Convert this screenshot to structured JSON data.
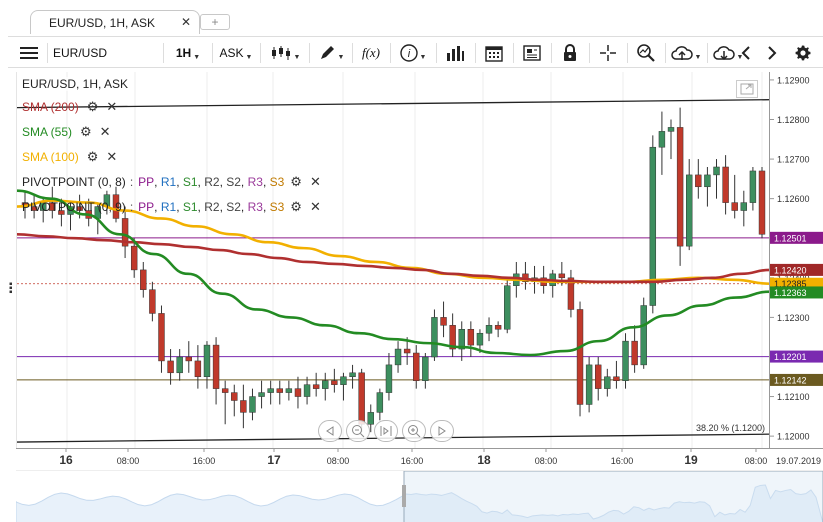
{
  "tab": {
    "title": "EUR/USD, 1H, ASK",
    "close": "✕",
    "add": "+"
  },
  "toolbar": {
    "symbol": "EUR/USD",
    "period": "1H",
    "side": "ASK",
    "icons": [
      "menu-icon",
      "candlestick-icon",
      "draw-icon",
      "function-icon",
      "info-icon",
      "volume-bars-icon",
      "calendar-icon",
      "news-icon",
      "lock-icon",
      "crosshair-icon",
      "zoom-icon",
      "cloud-upload-icon",
      "cloud-download-icon",
      "chevron-left-icon",
      "chevron-right-icon",
      "gear-icon"
    ],
    "fx_label": "f(x)"
  },
  "legend": {
    "title": "EUR/USD, 1H, ASK",
    "sma200": {
      "label": "SMA (200)",
      "color": "#b03030"
    },
    "sma55": {
      "label": "SMA (55)",
      "color": "#238b23"
    },
    "sma100": {
      "label": "SMA (100)",
      "color": "#f2b000"
    },
    "pivot1": {
      "label": "PIVOTPOINT (0, 8)",
      "pp": "PP",
      "r1": "R1",
      "s1": "S1",
      "r2": "R2",
      "s2": "S2",
      "r3": "R3",
      "s3": "S3",
      "sep": ":"
    },
    "pivot2": {
      "label": "PIVOTPOINT (0, 9)",
      "pp": "PP",
      "r1": "R1",
      "s1": "S1",
      "r2": "R2",
      "s2": "S2",
      "r3": "R3",
      "s3": "S3",
      "sep": ":"
    },
    "colors": {
      "pp": "#8b1a8b",
      "r1": "#1f6fbf",
      "s1": "#2e8b2e",
      "r2": "#444444",
      "s2": "#444444",
      "r3": "#9b3b9b",
      "s3": "#c07a00"
    }
  },
  "price_axis": {
    "ticks": [
      "1.12900",
      "1.12800",
      "1.12700",
      "1.12600",
      "1.12500",
      "1.12400",
      "1.12300",
      "1.12200",
      "1.12100",
      "1.12000"
    ],
    "badges": [
      {
        "value": "1.12501",
        "bg": "#8b1a8b",
        "fg": "#ffffff"
      },
      {
        "value": "1.12420",
        "bg": "#a02828",
        "fg": "#ffffff"
      },
      {
        "value": "1.12385",
        "bg": "#f2b000",
        "fg": "#222222"
      },
      {
        "value": "1.12363",
        "bg": "#238b23",
        "fg": "#ffffff"
      },
      {
        "value": "1.12201",
        "bg": "#7a2ab0",
        "fg": "#ffffff"
      },
      {
        "value": "1.12142",
        "bg": "#6b5a20",
        "fg": "#ffffff"
      }
    ]
  },
  "time_axis": {
    "labels": [
      {
        "t": "16",
        "bold": true
      },
      {
        "t": "08:00",
        "bold": false
      },
      {
        "t": "16:00",
        "bold": false
      },
      {
        "t": "17",
        "bold": true
      },
      {
        "t": "08:00",
        "bold": false
      },
      {
        "t": "16:00",
        "bold": false
      },
      {
        "t": "18",
        "bold": true
      },
      {
        "t": "08:00",
        "bold": false
      },
      {
        "t": "16:00",
        "bold": false
      },
      {
        "t": "19",
        "bold": true
      },
      {
        "t": "08:00",
        "bold": false
      }
    ],
    "end_label": "19.07.2019"
  },
  "fib_label": "38.20 % (1.1200)",
  "chart_data": {
    "type": "candlestick",
    "title": "EUR/USD, 1H, ASK",
    "ylim": [
      1.1197,
      1.1292
    ],
    "candles": [
      [
        1.1259,
        1.1262,
        1.1255,
        1.1258
      ],
      [
        1.1258,
        1.1261,
        1.1255,
        1.1257
      ],
      [
        1.1257,
        1.126,
        1.1254,
        1.1259
      ],
      [
        1.1259,
        1.1263,
        1.1255,
        1.1257
      ],
      [
        1.1257,
        1.126,
        1.1253,
        1.1256
      ],
      [
        1.1256,
        1.1259,
        1.1252,
        1.1258
      ],
      [
        1.1258,
        1.1261,
        1.1255,
        1.1257
      ],
      [
        1.1257,
        1.126,
        1.1253,
        1.1255
      ],
      [
        1.1255,
        1.1259,
        1.1251,
        1.1258
      ],
      [
        1.1258,
        1.1262,
        1.1256,
        1.1261
      ],
      [
        1.1261,
        1.1263,
        1.1254,
        1.1255
      ],
      [
        1.1255,
        1.1258,
        1.1245,
        1.1248
      ],
      [
        1.1248,
        1.125,
        1.124,
        1.1242
      ],
      [
        1.1242,
        1.1244,
        1.1235,
        1.1237
      ],
      [
        1.1237,
        1.1239,
        1.1229,
        1.1231
      ],
      [
        1.1231,
        1.1233,
        1.1216,
        1.1219
      ],
      [
        1.1219,
        1.1222,
        1.1213,
        1.1216
      ],
      [
        1.1216,
        1.1222,
        1.1214,
        1.122
      ],
      [
        1.122,
        1.1224,
        1.1216,
        1.1219
      ],
      [
        1.1219,
        1.1223,
        1.1212,
        1.1215
      ],
      [
        1.1215,
        1.1224,
        1.1212,
        1.1223
      ],
      [
        1.1223,
        1.1225,
        1.1208,
        1.1212
      ],
      [
        1.1212,
        1.1214,
        1.1203,
        1.1211
      ],
      [
        1.1211,
        1.1213,
        1.1205,
        1.1209
      ],
      [
        1.1209,
        1.1213,
        1.1202,
        1.1206
      ],
      [
        1.1206,
        1.1212,
        1.1204,
        1.121
      ],
      [
        1.121,
        1.1214,
        1.1207,
        1.1211
      ],
      [
        1.1211,
        1.1214,
        1.1208,
        1.1212
      ],
      [
        1.1212,
        1.1214,
        1.1208,
        1.1211
      ],
      [
        1.1211,
        1.1214,
        1.1209,
        1.1212
      ],
      [
        1.1212,
        1.1215,
        1.1207,
        1.121
      ],
      [
        1.121,
        1.1215,
        1.1208,
        1.1213
      ],
      [
        1.1213,
        1.1216,
        1.121,
        1.1212
      ],
      [
        1.1212,
        1.1216,
        1.1209,
        1.1214
      ],
      [
        1.1214,
        1.1217,
        1.1211,
        1.1213
      ],
      [
        1.1213,
        1.1216,
        1.1209,
        1.1215
      ],
      [
        1.1215,
        1.1218,
        1.1212,
        1.1216
      ],
      [
        1.1216,
        1.1217,
        1.1201,
        1.1203
      ],
      [
        1.1203,
        1.1208,
        1.1201,
        1.1206
      ],
      [
        1.1206,
        1.1212,
        1.1204,
        1.1211
      ],
      [
        1.1211,
        1.1221,
        1.1209,
        1.1218
      ],
      [
        1.1218,
        1.1224,
        1.1216,
        1.1222
      ],
      [
        1.1222,
        1.1225,
        1.1218,
        1.1221
      ],
      [
        1.1221,
        1.1223,
        1.1212,
        1.1214
      ],
      [
        1.1214,
        1.1221,
        1.1212,
        1.122
      ],
      [
        1.122,
        1.1232,
        1.1219,
        1.123
      ],
      [
        1.123,
        1.1234,
        1.1225,
        1.1228
      ],
      [
        1.1228,
        1.1231,
        1.122,
        1.1222
      ],
      [
        1.1222,
        1.1229,
        1.1219,
        1.1227
      ],
      [
        1.1227,
        1.1229,
        1.122,
        1.1223
      ],
      [
        1.1223,
        1.1227,
        1.1221,
        1.1226
      ],
      [
        1.1226,
        1.123,
        1.1224,
        1.1228
      ],
      [
        1.1228,
        1.1229,
        1.1225,
        1.1227
      ],
      [
        1.1227,
        1.124,
        1.1226,
        1.1238
      ],
      [
        1.1238,
        1.1244,
        1.1235,
        1.1241
      ],
      [
        1.1241,
        1.1244,
        1.1237,
        1.1239
      ],
      [
        1.1239,
        1.1243,
        1.1236,
        1.124
      ],
      [
        1.124,
        1.1243,
        1.1236,
        1.1238
      ],
      [
        1.1238,
        1.1242,
        1.1235,
        1.1241
      ],
      [
        1.1241,
        1.1244,
        1.1238,
        1.124
      ],
      [
        1.124,
        1.1242,
        1.123,
        1.1232
      ],
      [
        1.1232,
        1.1234,
        1.1205,
        1.1208
      ],
      [
        1.1208,
        1.122,
        1.1206,
        1.1218
      ],
      [
        1.1218,
        1.122,
        1.1209,
        1.1212
      ],
      [
        1.1212,
        1.1217,
        1.121,
        1.1215
      ],
      [
        1.1215,
        1.1219,
        1.1212,
        1.1214
      ],
      [
        1.1214,
        1.1226,
        1.1212,
        1.1224
      ],
      [
        1.1224,
        1.1228,
        1.1216,
        1.1218
      ],
      [
        1.1218,
        1.1235,
        1.1217,
        1.1233
      ],
      [
        1.1233,
        1.1276,
        1.1231,
        1.1273
      ],
      [
        1.1273,
        1.1282,
        1.1266,
        1.1277
      ],
      [
        1.1277,
        1.128,
        1.127,
        1.1278
      ],
      [
        1.1278,
        1.1283,
        1.1243,
        1.1248
      ],
      [
        1.1248,
        1.127,
        1.1247,
        1.1266
      ],
      [
        1.1266,
        1.127,
        1.126,
        1.1263
      ],
      [
        1.1263,
        1.1268,
        1.1258,
        1.1266
      ],
      [
        1.1266,
        1.127,
        1.126,
        1.1268
      ],
      [
        1.1268,
        1.1271,
        1.1256,
        1.1259
      ],
      [
        1.1259,
        1.1266,
        1.1255,
        1.1257
      ],
      [
        1.1257,
        1.1262,
        1.1253,
        1.1259
      ],
      [
        1.1259,
        1.1268,
        1.1257,
        1.1267
      ],
      [
        1.1267,
        1.1268,
        1.125,
        1.1251
      ]
    ],
    "sma200": [
      1.1251,
      1.12505,
      1.125,
      1.12495,
      1.1249,
      1.12485,
      1.12478,
      1.1247,
      1.1246,
      1.1245,
      1.1244,
      1.12435,
      1.1243,
      1.12425,
      1.1242,
      1.1241,
      1.12405,
      1.124,
      1.12395,
      1.12392,
      1.1239,
      1.1239,
      1.1239,
      1.12395,
      1.124,
      1.1241,
      1.1242
    ],
    "sma55": [
      1.1262,
      1.126,
      1.1256,
      1.1251,
      1.1246,
      1.1241,
      1.1236,
      1.1232,
      1.123,
      1.1228,
      1.1226,
      1.12245,
      1.12235,
      1.12225,
      1.1221,
      1.12205,
      1.12215,
      1.1224,
      1.12275,
      1.12305,
      1.1233,
      1.1235,
      1.12365
    ],
    "sma100": [
      1.1258,
      1.12595,
      1.1259,
      1.1257,
      1.1255,
      1.1253,
      1.1251,
      1.1249,
      1.12475,
      1.12455,
      1.1244,
      1.12425,
      1.1241,
      1.124,
      1.12395,
      1.1239,
      1.1239,
      1.1239,
      1.12395,
      1.124,
      1.12395,
      1.12385
    ],
    "horizontal_lines": [
      {
        "value": 1.12501,
        "color": "#8b1a8b"
      },
      {
        "value": 1.12201,
        "color": "#7a2ab0"
      },
      {
        "value": 1.12142,
        "color": "#6b5a20"
      },
      {
        "value": 1.12385,
        "color": "#c0392b",
        "dashed": true
      }
    ],
    "trendlines": [
      {
        "from": [
          0,
          1.1283
        ],
        "to": [
          81,
          1.1285
        ]
      },
      {
        "from": [
          0,
          1.11985
        ],
        "to": [
          81,
          1.12005
        ]
      }
    ]
  }
}
